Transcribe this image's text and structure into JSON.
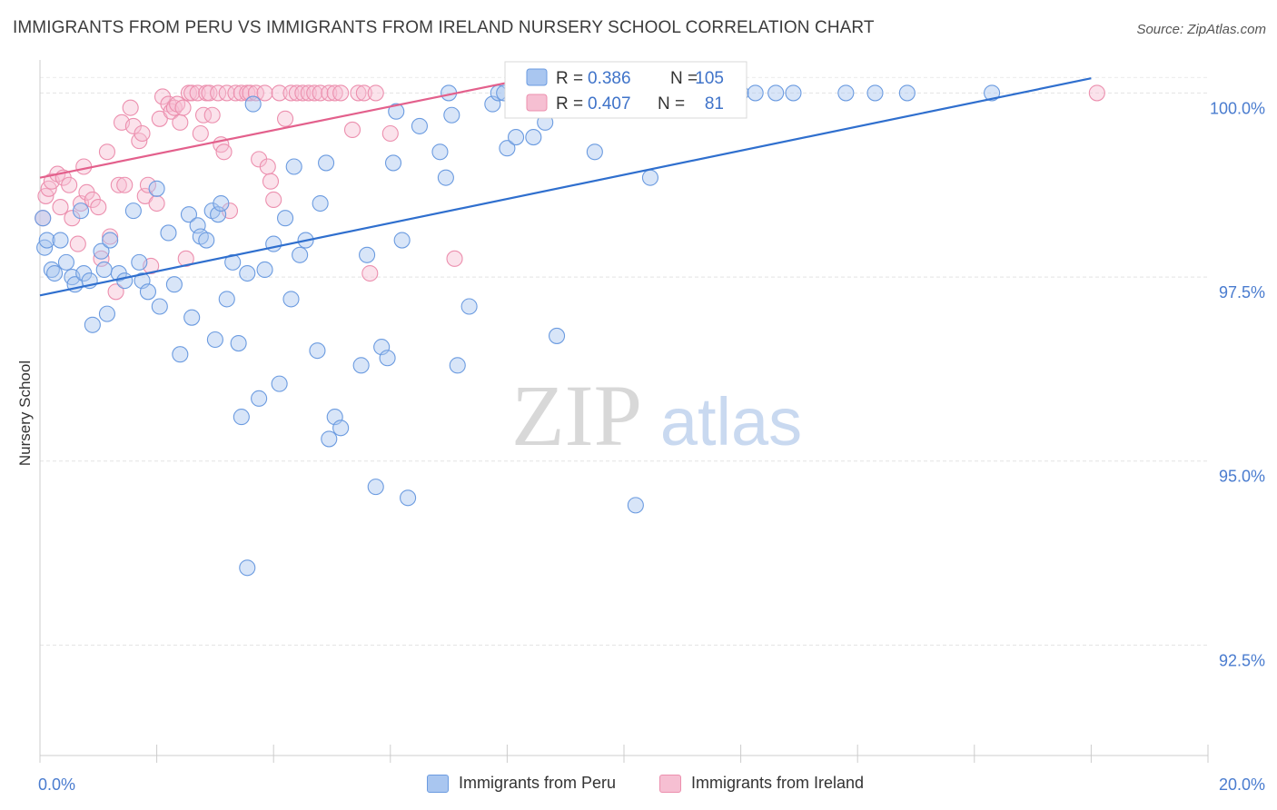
{
  "title": "IMMIGRANTS FROM PERU VS IMMIGRANTS FROM IRELAND NURSERY SCHOOL CORRELATION CHART",
  "source": "Source: ZipAtlas.com",
  "watermark": {
    "zip": "ZIP",
    "atlas": "atlas"
  },
  "colors": {
    "blue": "#6b9be0",
    "blue_fill": "#a9c6f0",
    "blue_line": "#2f6fce",
    "pink": "#ec8fae",
    "pink_fill": "#f6bfd2",
    "pink_line": "#e3608c",
    "axis_label": "#4a7ccf"
  },
  "stats_legend": [
    {
      "r_label": "R =",
      "r_value": "0.386",
      "n_label": "N =",
      "n_value": "105"
    },
    {
      "r_label": "R =",
      "r_value": "0.407",
      "n_label": "N =",
      "n_value": "81"
    }
  ],
  "chart_data": {
    "type": "scatter",
    "title": "IMMIGRANTS FROM PERU VS IMMIGRANTS FROM IRELAND NURSERY SCHOOL CORRELATION CHART",
    "xlabel": "",
    "ylabel": "Nursery School",
    "xlim": [
      0.0,
      20.0
    ],
    "ylim": [
      91.0,
      100.4
    ],
    "x_tick_labels": [
      {
        "value": 0.0,
        "label": "0.0%"
      },
      {
        "value": 20.0,
        "label": "20.0%"
      }
    ],
    "y_ticks": [
      {
        "value": 92.5,
        "label": "92.5%"
      },
      {
        "value": 95.0,
        "label": "95.0%"
      },
      {
        "value": 97.5,
        "label": "97.5%"
      },
      {
        "value": 100.0,
        "label": "100.0%"
      }
    ],
    "grid": true,
    "legend": "bottom-center",
    "series": [
      {
        "name": "Immigrants from Peru",
        "color": "#6b9be0",
        "R": 0.386,
        "N": 105,
        "trend": {
          "x": [
            0.0,
            18.0
          ],
          "y": [
            97.25,
            100.2
          ]
        },
        "points": [
          [
            0.05,
            98.3
          ],
          [
            0.08,
            97.9
          ],
          [
            0.12,
            98.0
          ],
          [
            0.2,
            97.6
          ],
          [
            0.25,
            97.55
          ],
          [
            0.35,
            98.0
          ],
          [
            0.45,
            97.7
          ],
          [
            0.55,
            97.5
          ],
          [
            0.6,
            97.4
          ],
          [
            0.7,
            98.4
          ],
          [
            0.75,
            97.55
          ],
          [
            0.85,
            97.45
          ],
          [
            0.9,
            96.85
          ],
          [
            1.05,
            97.85
          ],
          [
            1.1,
            97.6
          ],
          [
            1.15,
            97.0
          ],
          [
            1.2,
            98.0
          ],
          [
            1.35,
            97.55
          ],
          [
            1.45,
            97.45
          ],
          [
            1.6,
            98.4
          ],
          [
            1.7,
            97.7
          ],
          [
            1.75,
            97.45
          ],
          [
            1.85,
            97.3
          ],
          [
            2.0,
            98.7
          ],
          [
            2.05,
            97.1
          ],
          [
            2.2,
            98.1
          ],
          [
            2.3,
            97.4
          ],
          [
            2.4,
            96.45
          ],
          [
            2.55,
            98.35
          ],
          [
            2.6,
            96.95
          ],
          [
            2.7,
            98.2
          ],
          [
            2.75,
            98.05
          ],
          [
            2.85,
            98.0
          ],
          [
            2.95,
            98.4
          ],
          [
            3.0,
            96.65
          ],
          [
            3.05,
            98.35
          ],
          [
            3.1,
            98.5
          ],
          [
            3.2,
            97.2
          ],
          [
            3.3,
            97.7
          ],
          [
            3.4,
            96.6
          ],
          [
            3.45,
            95.6
          ],
          [
            3.55,
            97.55
          ],
          [
            3.55,
            93.55
          ],
          [
            3.65,
            99.85
          ],
          [
            3.75,
            95.85
          ],
          [
            3.85,
            97.6
          ],
          [
            4.0,
            97.95
          ],
          [
            4.1,
            96.05
          ],
          [
            4.2,
            98.3
          ],
          [
            4.3,
            97.2
          ],
          [
            4.35,
            99.0
          ],
          [
            4.45,
            97.8
          ],
          [
            4.55,
            98.0
          ],
          [
            4.75,
            96.5
          ],
          [
            4.8,
            98.5
          ],
          [
            4.9,
            99.05
          ],
          [
            4.95,
            95.3
          ],
          [
            5.05,
            95.6
          ],
          [
            5.15,
            95.45
          ],
          [
            5.5,
            96.3
          ],
          [
            5.6,
            97.8
          ],
          [
            5.75,
            94.65
          ],
          [
            5.85,
            96.55
          ],
          [
            5.95,
            96.4
          ],
          [
            6.05,
            99.05
          ],
          [
            6.1,
            99.75
          ],
          [
            6.3,
            94.5
          ],
          [
            6.2,
            98.0
          ],
          [
            6.5,
            99.55
          ],
          [
            6.85,
            99.2
          ],
          [
            6.95,
            98.85
          ],
          [
            7.05,
            99.7
          ],
          [
            7.15,
            96.3
          ],
          [
            7.0,
            100.0
          ],
          [
            7.35,
            97.1
          ],
          [
            7.75,
            99.85
          ],
          [
            7.85,
            100.0
          ],
          [
            7.95,
            100.0
          ],
          [
            8.0,
            99.25
          ],
          [
            8.15,
            99.4
          ],
          [
            8.2,
            100.0
          ],
          [
            8.3,
            100.0
          ],
          [
            8.45,
            99.4
          ],
          [
            8.65,
            99.6
          ],
          [
            8.85,
            96.7
          ],
          [
            8.95,
            100.0
          ],
          [
            9.05,
            100.0
          ],
          [
            9.25,
            100.0
          ],
          [
            9.5,
            99.2
          ],
          [
            9.65,
            100.0
          ],
          [
            9.9,
            100.0
          ],
          [
            10.2,
            100.0
          ],
          [
            10.45,
            98.85
          ],
          [
            10.85,
            100.0
          ],
          [
            11.1,
            100.0
          ],
          [
            11.5,
            100.0
          ],
          [
            12.0,
            100.0
          ],
          [
            12.25,
            100.0
          ],
          [
            12.6,
            100.0
          ],
          [
            12.9,
            100.0
          ],
          [
            13.8,
            100.0
          ],
          [
            14.3,
            100.0
          ],
          [
            14.85,
            100.0
          ],
          [
            16.3,
            100.0
          ],
          [
            10.2,
            94.4
          ]
        ]
      },
      {
        "name": "Immigrants from Ireland",
        "color": "#ec8fae",
        "R": 0.407,
        "N": 81,
        "trend": {
          "x": [
            0.0,
            9.0
          ],
          "y": [
            98.85,
            100.3
          ]
        },
        "points": [
          [
            0.05,
            98.3
          ],
          [
            0.1,
            98.6
          ],
          [
            0.15,
            98.7
          ],
          [
            0.2,
            98.8
          ],
          [
            0.3,
            98.9
          ],
          [
            0.35,
            98.45
          ],
          [
            0.4,
            98.85
          ],
          [
            0.5,
            98.75
          ],
          [
            0.55,
            98.3
          ],
          [
            0.65,
            97.95
          ],
          [
            0.7,
            98.5
          ],
          [
            0.75,
            99.0
          ],
          [
            0.8,
            98.65
          ],
          [
            0.9,
            98.55
          ],
          [
            1.0,
            98.45
          ],
          [
            1.05,
            97.75
          ],
          [
            1.15,
            99.2
          ],
          [
            1.2,
            98.05
          ],
          [
            1.3,
            97.3
          ],
          [
            1.35,
            98.75
          ],
          [
            1.4,
            99.6
          ],
          [
            1.45,
            98.75
          ],
          [
            1.55,
            99.8
          ],
          [
            1.6,
            99.55
          ],
          [
            1.7,
            99.35
          ],
          [
            1.75,
            99.45
          ],
          [
            1.8,
            98.6
          ],
          [
            1.85,
            98.75
          ],
          [
            1.9,
            97.65
          ],
          [
            2.0,
            98.5
          ],
          [
            2.05,
            99.65
          ],
          [
            2.1,
            99.95
          ],
          [
            2.2,
            99.85
          ],
          [
            2.25,
            99.75
          ],
          [
            2.3,
            99.8
          ],
          [
            2.35,
            99.85
          ],
          [
            2.4,
            99.6
          ],
          [
            2.45,
            99.8
          ],
          [
            2.5,
            97.75
          ],
          [
            2.55,
            100.0
          ],
          [
            2.6,
            100.0
          ],
          [
            2.7,
            100.0
          ],
          [
            2.75,
            99.45
          ],
          [
            2.8,
            99.7
          ],
          [
            2.85,
            100.0
          ],
          [
            2.9,
            100.0
          ],
          [
            2.95,
            99.7
          ],
          [
            3.05,
            100.0
          ],
          [
            3.1,
            99.3
          ],
          [
            3.15,
            99.2
          ],
          [
            3.2,
            100.0
          ],
          [
            3.25,
            98.4
          ],
          [
            3.35,
            100.0
          ],
          [
            3.45,
            100.0
          ],
          [
            3.55,
            100.0
          ],
          [
            3.6,
            100.0
          ],
          [
            3.7,
            100.0
          ],
          [
            3.75,
            99.1
          ],
          [
            3.85,
            100.0
          ],
          [
            3.9,
            99.0
          ],
          [
            3.95,
            98.8
          ],
          [
            4.0,
            98.55
          ],
          [
            4.1,
            100.0
          ],
          [
            4.2,
            99.65
          ],
          [
            4.3,
            100.0
          ],
          [
            4.4,
            100.0
          ],
          [
            4.5,
            100.0
          ],
          [
            4.6,
            100.0
          ],
          [
            4.7,
            100.0
          ],
          [
            4.8,
            100.0
          ],
          [
            4.95,
            100.0
          ],
          [
            5.05,
            100.0
          ],
          [
            5.15,
            100.0
          ],
          [
            5.35,
            99.5
          ],
          [
            5.45,
            100.0
          ],
          [
            5.55,
            100.0
          ],
          [
            5.65,
            97.55
          ],
          [
            5.75,
            100.0
          ],
          [
            6.0,
            99.45
          ],
          [
            7.1,
            97.75
          ],
          [
            18.1,
            100.0
          ]
        ]
      }
    ]
  }
}
